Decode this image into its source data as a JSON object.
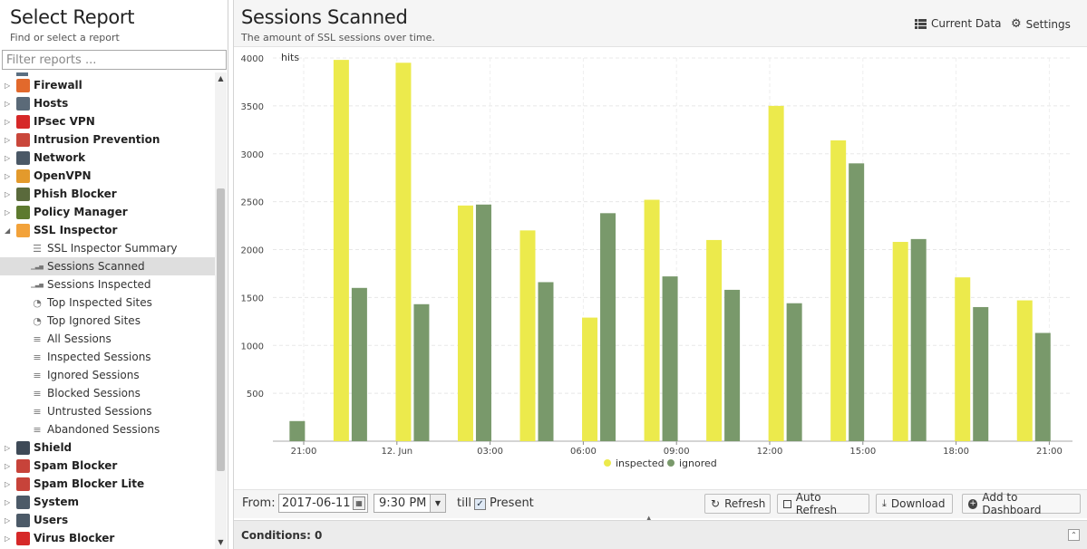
{
  "left_panel": {
    "title": "Select Report",
    "subtitle": "Find or select a report",
    "filter_placeholder": "Filter reports ..."
  },
  "tree": [
    {
      "label": "Firewall",
      "icon": "firewall-icon",
      "color": "#e2692c"
    },
    {
      "label": "Hosts",
      "icon": "hosts-icon",
      "color": "#5b6a78"
    },
    {
      "label": "IPsec VPN",
      "icon": "ipsec-vpn-icon",
      "color": "#d62828"
    },
    {
      "label": "Intrusion Prevention",
      "icon": "intrusion-prevention-icon",
      "color": "#c9473b"
    },
    {
      "label": "Network",
      "icon": "network-icon",
      "color": "#4a5866"
    },
    {
      "label": "OpenVPN",
      "icon": "openvpn-icon",
      "color": "#e39a2c"
    },
    {
      "label": "Phish Blocker",
      "icon": "phish-blocker-icon",
      "color": "#5a6a3c"
    },
    {
      "label": "Policy Manager",
      "icon": "policy-manager-icon",
      "color": "#5d7a2f"
    },
    {
      "label": "SSL Inspector",
      "icon": "ssl-inspector-icon",
      "color": "#f2a23a",
      "expanded": true,
      "children": [
        {
          "label": "SSL Inspector Summary",
          "icon": "text-report-icon"
        },
        {
          "label": "Sessions Scanned",
          "icon": "bar-chart-icon",
          "selected": true
        },
        {
          "label": "Sessions Inspected",
          "icon": "bar-chart-icon"
        },
        {
          "label": "Top Inspected Sites",
          "icon": "pie-chart-icon"
        },
        {
          "label": "Top Ignored Sites",
          "icon": "pie-chart-icon"
        },
        {
          "label": "All Sessions",
          "icon": "list-icon"
        },
        {
          "label": "Inspected Sessions",
          "icon": "list-icon"
        },
        {
          "label": "Ignored Sessions",
          "icon": "list-icon"
        },
        {
          "label": "Blocked Sessions",
          "icon": "list-icon"
        },
        {
          "label": "Untrusted Sessions",
          "icon": "list-icon"
        },
        {
          "label": "Abandoned Sessions",
          "icon": "list-icon"
        }
      ]
    },
    {
      "label": "Shield",
      "icon": "shield-icon",
      "color": "#3e4a57"
    },
    {
      "label": "Spam Blocker",
      "icon": "spam-blocker-icon",
      "color": "#c7433a"
    },
    {
      "label": "Spam Blocker Lite",
      "icon": "spam-blocker-lite-icon",
      "color": "#c7433a"
    },
    {
      "label": "System",
      "icon": "system-icon",
      "color": "#4c5a68"
    },
    {
      "label": "Users",
      "icon": "users-icon",
      "color": "#4c5a68"
    },
    {
      "label": "Virus Blocker",
      "icon": "virus-blocker-icon",
      "color": "#d62828"
    }
  ],
  "report": {
    "title": "Sessions Scanned",
    "description": "The amount of SSL sessions over time.",
    "current_data_label": "Current Data",
    "settings_label": "Settings"
  },
  "chart_data": {
    "type": "bar",
    "y_unit_label": "hits",
    "ylim": [
      0,
      4000
    ],
    "y_ticks": [
      500,
      1000,
      1500,
      2000,
      2500,
      3000,
      3500,
      4000
    ],
    "x_tick_labels": [
      "21:00",
      "12. Jun",
      "03:00",
      "06:00",
      "09:00",
      "12:00",
      "15:00",
      "18:00",
      "21:00"
    ],
    "x": [
      "20:30",
      "22:30",
      "00:30",
      "02:30",
      "04:30",
      "06:30",
      "08:30",
      "10:30",
      "12:30",
      "14:30",
      "16:30",
      "18:30",
      "20:30"
    ],
    "series": [
      {
        "name": "inspected",
        "color": "#ecea4c",
        "values": [
          0,
          3980,
          3950,
          2460,
          2200,
          1290,
          2520,
          2100,
          3500,
          3140,
          2080,
          1710,
          1470
        ]
      },
      {
        "name": "ignored",
        "color": "#79996b",
        "values": [
          210,
          1600,
          1430,
          2470,
          1660,
          2380,
          1720,
          1580,
          1440,
          2900,
          2110,
          1400,
          1130
        ]
      }
    ],
    "legend_position": "bottom-center",
    "grid": true
  },
  "toolbar": {
    "from_label": "From:",
    "from_date": "2017-06-11",
    "from_time": "9:30 PM",
    "till_label": "till",
    "present_label": "Present",
    "present_checked": true,
    "refresh_label": "Refresh",
    "auto_refresh_label": "Auto Refresh",
    "download_label": "Download",
    "add_dashboard_label": "Add to Dashboard"
  },
  "conditions": {
    "label": "Conditions: 0"
  }
}
